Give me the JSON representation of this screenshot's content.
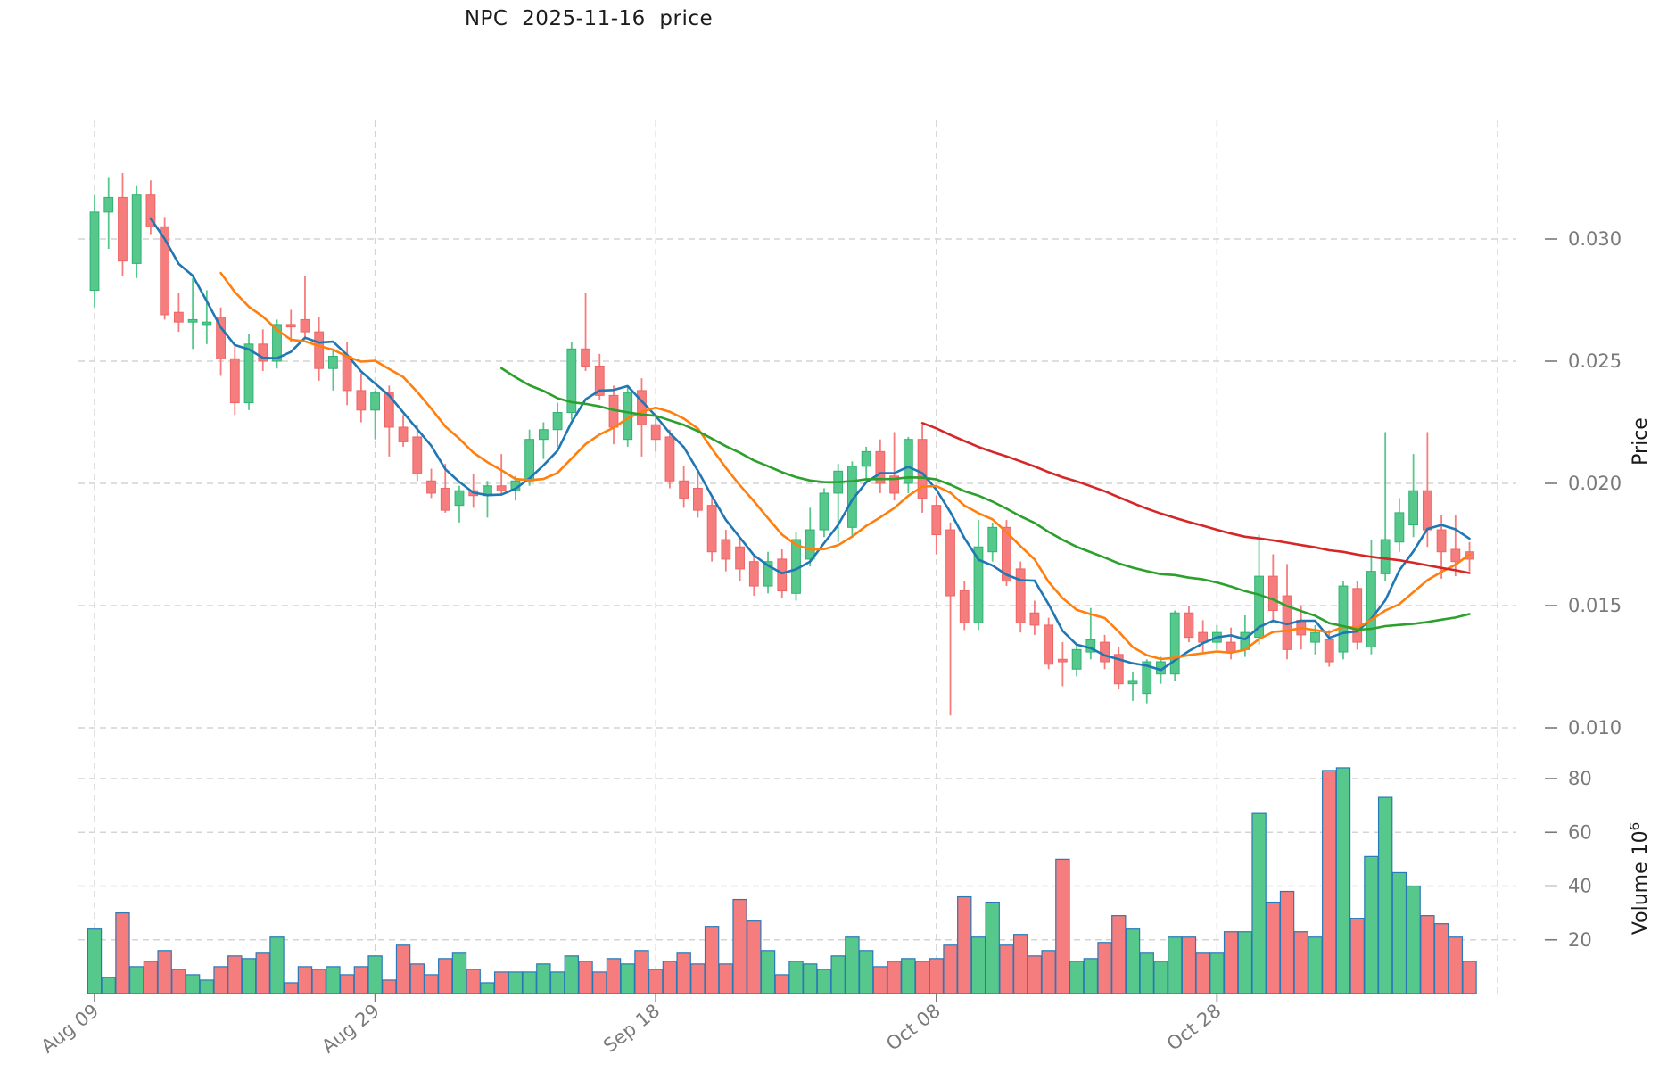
{
  "title": "NPC  2025-11-16  price",
  "axes": {
    "price_label": "Price",
    "volume_label": "Volume",
    "volume_exponent_base": "10",
    "volume_exponent": "6",
    "price_ticks": [
      0.01,
      0.015,
      0.02,
      0.025,
      0.03
    ],
    "volume_ticks": [
      20,
      40,
      60,
      80
    ],
    "x_ticks": [
      {
        "index": 0,
        "label": "Aug 09"
      },
      {
        "index": 20,
        "label": "Aug 29"
      },
      {
        "index": 40,
        "label": "Sep 18"
      },
      {
        "index": 60,
        "label": "Oct 08"
      },
      {
        "index": 80,
        "label": "Oct 28"
      }
    ],
    "right_edge_gridline_index": 100,
    "grid": true,
    "legend": "none"
  },
  "chart_data": {
    "type": "candlestick",
    "frequency": "daily",
    "x_tick_labels": [
      "Aug 09",
      "Aug 29",
      "Sep 18",
      "Oct 08",
      "Oct 28"
    ],
    "title": "NPC  2025-11-16  price",
    "ylabel": "Price",
    "ylabel_volume": "Volume 10^6",
    "price_ylim": [
      0.0095,
      0.0348
    ],
    "volume_ylim": [
      0,
      90
    ],
    "candle_count": 99,
    "open": [
      0.0279,
      0.0311,
      0.0317,
      0.029,
      0.0318,
      0.0305,
      0.027,
      0.0266,
      0.0265,
      0.0268,
      0.0251,
      0.0233,
      0.0257,
      0.025,
      0.0265,
      0.0267,
      0.0262,
      0.0247,
      0.0252,
      0.0238,
      0.023,
      0.0237,
      0.0223,
      0.0219,
      0.0201,
      0.0198,
      0.0191,
      0.0197,
      0.0195,
      0.0199,
      0.0197,
      0.0201,
      0.0218,
      0.0222,
      0.0229,
      0.0255,
      0.0248,
      0.0236,
      0.0218,
      0.0238,
      0.0224,
      0.0219,
      0.0201,
      0.0198,
      0.0191,
      0.0177,
      0.0174,
      0.0168,
      0.0158,
      0.0169,
      0.0155,
      0.0169,
      0.0181,
      0.0196,
      0.0182,
      0.0207,
      0.0213,
      0.0203,
      0.02,
      0.0218,
      0.0191,
      0.0181,
      0.0156,
      0.0143,
      0.0172,
      0.0182,
      0.0165,
      0.0147,
      0.0142,
      0.0128,
      0.0124,
      0.0131,
      0.0135,
      0.013,
      0.0118,
      0.0114,
      0.0122,
      0.0122,
      0.0147,
      0.0139,
      0.0135,
      0.0135,
      0.0132,
      0.0137,
      0.0162,
      0.0154,
      0.0144,
      0.0135,
      0.0136,
      0.0131,
      0.0157,
      0.0133,
      0.0163,
      0.0176,
      0.0183,
      0.0197,
      0.0181,
      0.0173,
      0.0172
    ],
    "high": [
      0.0318,
      0.0325,
      0.0327,
      0.0322,
      0.0324,
      0.0309,
      0.0278,
      0.0284,
      0.0279,
      0.0272,
      0.0256,
      0.0261,
      0.0263,
      0.0267,
      0.0271,
      0.0285,
      0.0268,
      0.0255,
      0.0258,
      0.0245,
      0.0238,
      0.024,
      0.0228,
      0.0224,
      0.0206,
      0.0208,
      0.0199,
      0.0204,
      0.0201,
      0.0212,
      0.0203,
      0.0222,
      0.0225,
      0.0233,
      0.0258,
      0.0278,
      0.0253,
      0.024,
      0.024,
      0.0243,
      0.0227,
      0.0222,
      0.0207,
      0.0204,
      0.0194,
      0.0181,
      0.0178,
      0.0171,
      0.0172,
      0.0173,
      0.018,
      0.019,
      0.0198,
      0.0208,
      0.0209,
      0.0215,
      0.0218,
      0.0221,
      0.0219,
      0.0224,
      0.0195,
      0.0184,
      0.016,
      0.0185,
      0.0184,
      0.0185,
      0.0168,
      0.0152,
      0.0145,
      0.0135,
      0.0134,
      0.0149,
      0.0138,
      0.0133,
      0.0123,
      0.0128,
      0.0129,
      0.0148,
      0.015,
      0.0144,
      0.0142,
      0.0141,
      0.0146,
      0.0179,
      0.0171,
      0.0167,
      0.015,
      0.0142,
      0.014,
      0.016,
      0.016,
      0.0177,
      0.0221,
      0.0194,
      0.0212,
      0.0221,
      0.0187,
      0.0187,
      0.0176
    ],
    "low": [
      0.0272,
      0.0296,
      0.0285,
      0.0284,
      0.0302,
      0.0267,
      0.0262,
      0.0255,
      0.0257,
      0.0244,
      0.0228,
      0.023,
      0.0246,
      0.0247,
      0.0258,
      0.0259,
      0.0242,
      0.0238,
      0.0232,
      0.0225,
      0.0218,
      0.0211,
      0.0215,
      0.0201,
      0.0194,
      0.0188,
      0.0184,
      0.019,
      0.0186,
      0.0195,
      0.0193,
      0.0199,
      0.021,
      0.0215,
      0.0226,
      0.0246,
      0.0234,
      0.0216,
      0.0215,
      0.0211,
      0.0213,
      0.0198,
      0.019,
      0.0186,
      0.0168,
      0.0164,
      0.016,
      0.0154,
      0.0155,
      0.0153,
      0.0152,
      0.0166,
      0.0178,
      0.0176,
      0.0178,
      0.02,
      0.0196,
      0.0193,
      0.0196,
      0.0188,
      0.0171,
      0.0105,
      0.014,
      0.014,
      0.0168,
      0.0158,
      0.0139,
      0.0138,
      0.0124,
      0.0117,
      0.0121,
      0.0128,
      0.0124,
      0.0116,
      0.0111,
      0.011,
      0.0118,
      0.0119,
      0.0135,
      0.0131,
      0.0132,
      0.0128,
      0.0129,
      0.0134,
      0.0143,
      0.0128,
      0.0132,
      0.013,
      0.0125,
      0.0128,
      0.0132,
      0.013,
      0.016,
      0.0172,
      0.0178,
      0.0174,
      0.0161,
      0.0162,
      0.0164
    ],
    "close": [
      0.0311,
      0.0317,
      0.0291,
      0.0318,
      0.0305,
      0.0269,
      0.0266,
      0.0267,
      0.0266,
      0.0251,
      0.0233,
      0.0257,
      0.025,
      0.0265,
      0.0264,
      0.0262,
      0.0247,
      0.0252,
      0.0238,
      0.023,
      0.0237,
      0.0223,
      0.0217,
      0.0204,
      0.0196,
      0.0189,
      0.0197,
      0.0195,
      0.0199,
      0.0197,
      0.0201,
      0.0218,
      0.0222,
      0.0229,
      0.0255,
      0.0248,
      0.0236,
      0.0223,
      0.0237,
      0.0224,
      0.0218,
      0.0201,
      0.0194,
      0.0189,
      0.0172,
      0.0169,
      0.0165,
      0.0158,
      0.0168,
      0.0156,
      0.0177,
      0.0181,
      0.0196,
      0.0205,
      0.0207,
      0.0213,
      0.02,
      0.0196,
      0.0218,
      0.0194,
      0.0179,
      0.0154,
      0.0143,
      0.0174,
      0.0182,
      0.016,
      0.0143,
      0.0142,
      0.0126,
      0.0127,
      0.0132,
      0.0136,
      0.0127,
      0.0118,
      0.0119,
      0.0127,
      0.0127,
      0.0147,
      0.0137,
      0.0135,
      0.0139,
      0.0131,
      0.0139,
      0.0162,
      0.0148,
      0.0132,
      0.0138,
      0.0139,
      0.0127,
      0.0158,
      0.0135,
      0.0164,
      0.0177,
      0.0188,
      0.0197,
      0.0181,
      0.0172,
      0.0168,
      0.0169
    ],
    "volume_millions": [
      24,
      6,
      30,
      10,
      12,
      16,
      9,
      7,
      5,
      10,
      14,
      13,
      15,
      21,
      4,
      10,
      9,
      10,
      7,
      10,
      14,
      5,
      18,
      11,
      7,
      13,
      15,
      9,
      4,
      8,
      8,
      8,
      11,
      8,
      14,
      12,
      8,
      13,
      11,
      16,
      9,
      12,
      15,
      11,
      25,
      11,
      35,
      27,
      16,
      7,
      12,
      11,
      9,
      14,
      21,
      16,
      10,
      12,
      13,
      12,
      13,
      18,
      36,
      21,
      34,
      18,
      22,
      14,
      16,
      50,
      12,
      13,
      19,
      29,
      24,
      15,
      12,
      21,
      21,
      15,
      15,
      23,
      23,
      67,
      34,
      38,
      23,
      21,
      83,
      84,
      28,
      51,
      73,
      45,
      40,
      29,
      26,
      21,
      12
    ],
    "moving_averages": [
      {
        "name": "MA5",
        "period": 5,
        "color": "#1f77b4"
      },
      {
        "name": "MA10",
        "period": 10,
        "color": "#ff7f0e"
      },
      {
        "name": "MA30",
        "period": 30,
        "color": "#2ca02c"
      },
      {
        "name": "MA60",
        "period": 60,
        "color": "#d62728"
      }
    ]
  },
  "colors": {
    "up_fill": "#57c88b",
    "up_edge": "#2fb273",
    "down_fill": "#f57d7d",
    "down_edge": "#ee6565",
    "volume_edge": "#2979b8",
    "grid": "#d4d4d4",
    "tick_text": "#7a7a7a",
    "axis_label_text": "#1a1a1a",
    "title_text": "#1c1c1c",
    "background": "#ffffff"
  }
}
